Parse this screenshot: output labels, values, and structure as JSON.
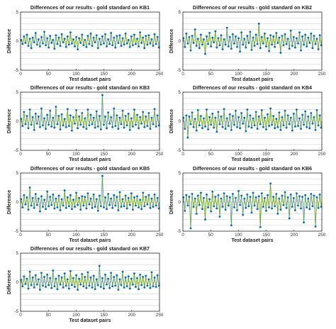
{
  "chart_data": [
    {
      "type": "line",
      "title": "Differences of our results - gold standard on KB1",
      "xlabel": "Test dataset pairs",
      "ylabel": "Difference",
      "xlim": [
        0,
        250
      ],
      "ylim": [
        -5,
        5
      ],
      "xticks": [
        "0",
        "50",
        "100",
        "150",
        "200",
        "250"
      ],
      "yticks": [
        "-5",
        "0",
        "5"
      ],
      "grid": true,
      "series": [
        {
          "values": [
            0.2,
            -0.5,
            0.8,
            -0.3,
            1.1,
            -0.8,
            0.4,
            -1.2,
            0.6,
            -0.2,
            1.4,
            -0.6,
            0.3,
            -0.9,
            0.7,
            -0.4,
            1.6,
            -0.7,
            0.5,
            -1.1,
            0.9,
            -0.3,
            0.2,
            -1.3,
            1.0,
            -0.5,
            0.6,
            -0.8,
            1.2,
            -0.2,
            0.4,
            -1.0,
            0.8,
            -0.6,
            1.5,
            -0.4,
            0.3,
            -0.9,
            0.7,
            -1.4,
            0.5,
            -0.3,
            1.1,
            -0.7,
            0.2,
            -1.0,
            0.9,
            -0.5,
            1.3,
            -0.8,
            0.6,
            -0.2,
            1.0,
            -1.2,
            0.4,
            -0.6,
            0.8,
            -0.4,
            1.2,
            -0.9,
            0.3,
            -0.5,
            1.4,
            -0.7,
            0.6,
            -1.1,
            0.9,
            -0.3,
            1.0,
            -0.8,
            0.5,
            -0.6,
            1.3,
            -0.4,
            0.2,
            -1.0,
            0.8,
            -0.7,
            1.1,
            -0.5,
            0.4,
            -0.9,
            1.5,
            -0.3,
            0.6,
            -1.2,
            0.9,
            -0.6,
            1.0,
            -0.4,
            0.3,
            -0.8,
            1.2,
            -0.5,
            0.7,
            -1.1
          ]
        }
      ]
    },
    {
      "type": "line",
      "title": "Differences of our results - gold standard on KB2",
      "xlabel": "Test dataset pairs",
      "ylabel": "Difference",
      "xlim": [
        0,
        250
      ],
      "ylim": [
        -5,
        5
      ],
      "xticks": [
        "0",
        "50",
        "100",
        "150",
        "200",
        "250"
      ],
      "yticks": [
        "-5",
        "0",
        "5"
      ],
      "grid": true,
      "series": [
        {
          "values": [
            0.5,
            -1.0,
            1.3,
            -0.4,
            0.7,
            -1.6,
            0.9,
            -0.3,
            2.0,
            -0.8,
            0.4,
            -1.2,
            1.1,
            -0.6,
            0.3,
            -2.2,
            0.8,
            -0.5,
            1.4,
            -0.9,
            0.6,
            -0.2,
            1.7,
            -1.1,
            0.5,
            -0.7,
            1.0,
            -1.4,
            0.3,
            -0.6,
            2.3,
            -0.9,
            0.7,
            -1.3,
            1.2,
            -0.4,
            0.8,
            -1.0,
            0.5,
            -1.8,
            1.5,
            -0.6,
            0.4,
            -1.1,
            0.9,
            -0.3,
            1.6,
            -1.5,
            0.6,
            -0.8,
            1.1,
            -0.5,
            3.0,
            -1.2,
            0.7,
            -0.4,
            1.3,
            -0.9,
            0.5,
            -1.7,
            1.0,
            -0.6,
            0.8,
            -1.0,
            1.4,
            -0.3,
            0.6,
            -2.0,
            0.9,
            -0.7,
            1.2,
            -0.5,
            0.4,
            -1.3,
            1.8,
            -0.8,
            0.7,
            -1.1,
            0.5,
            -0.4,
            1.5,
            -1.6,
            0.8,
            -0.6,
            1.1,
            -0.9,
            0.6,
            -0.3,
            1.3,
            -1.2,
            0.9,
            -0.5,
            0.4,
            -1.4,
            1.0,
            -0.7
          ]
        }
      ]
    },
    {
      "type": "line",
      "title": "Differences of our results - gold standard on KB3",
      "xlabel": "Test dataset pairs",
      "ylabel": "Difference",
      "xlim": [
        0,
        250
      ],
      "ylim": [
        -5,
        5
      ],
      "xticks": [
        "0",
        "50",
        "100",
        "150",
        "200",
        "250"
      ],
      "yticks": [
        "-5",
        "0",
        "5"
      ],
      "grid": true,
      "series": [
        {
          "values": [
            0.4,
            -0.8,
            1.6,
            -0.5,
            0.9,
            -1.2,
            2.0,
            -0.6,
            0.7,
            -1.5,
            1.3,
            -0.4,
            0.8,
            -1.0,
            2.2,
            -0.7,
            0.5,
            -1.3,
            1.1,
            -0.6,
            1.8,
            -0.9,
            0.6,
            -1.1,
            2.5,
            -0.5,
            0.9,
            -1.4,
            1.2,
            -0.7,
            0.4,
            -1.0,
            2.1,
            -0.8,
            1.0,
            -1.6,
            0.7,
            -0.4,
            1.9,
            -1.2,
            0.8,
            -0.6,
            1.4,
            -1.0,
            0.5,
            -1.3,
            2.0,
            -0.7,
            1.1,
            -0.5,
            0.6,
            -1.1,
            1.7,
            -0.9,
            0.9,
            -1.4,
            4.5,
            -0.6,
            0.8,
            -1.2,
            1.5,
            -0.4,
            0.7,
            -1.0,
            2.2,
            -0.8,
            1.0,
            -1.3,
            0.6,
            -0.5,
            1.8,
            -1.1,
            0.9,
            -0.7,
            1.3,
            -1.5,
            0.5,
            -0.9,
            2.0,
            -0.6,
            1.1,
            -1.2,
            0.7,
            -0.4,
            1.6,
            -1.0,
            0.8,
            -0.8,
            1.4,
            -1.3,
            0.6,
            -0.5,
            2.1,
            -0.9,
            1.0,
            -0.7
          ]
        }
      ]
    },
    {
      "type": "line",
      "title": "Differences of our results - gold standard on KB4",
      "xlabel": "Test dataset pairs",
      "ylabel": "Difference",
      "xlim": [
        0,
        250
      ],
      "ylim": [
        -5,
        5
      ],
      "xticks": [
        "0",
        "50",
        "100",
        "150",
        "200",
        "250"
      ],
      "yticks": [
        "-5",
        "0",
        "5"
      ],
      "grid": true,
      "series": [
        {
          "values": [
            0.6,
            -1.3,
            1.0,
            -2.8,
            0.8,
            -0.5,
            1.5,
            -1.0,
            0.4,
            -1.6,
            1.9,
            -0.7,
            0.9,
            -1.2,
            0.5,
            -0.9,
            2.0,
            -1.4,
            0.7,
            -0.6,
            1.3,
            -1.1,
            0.6,
            -1.8,
            1.6,
            -0.5,
            0.8,
            -1.0,
            2.1,
            -1.3,
            0.5,
            -0.8,
            1.2,
            -1.5,
            0.9,
            -0.6,
            1.8,
            -1.0,
            0.7,
            -1.2,
            1.4,
            -0.4,
            0.6,
            -1.7,
            2.0,
            -0.9,
            1.0,
            -1.1,
            0.5,
            -0.7,
            1.6,
            -1.3,
            0.8,
            -0.5,
            1.9,
            -1.0,
            0.6,
            -1.4,
            1.2,
            -0.8,
            2.2,
            -0.6,
            0.9,
            -1.2,
            0.4,
            -1.0,
            1.5,
            -1.5,
            0.7,
            -0.7,
            1.8,
            -1.1,
            1.0,
            -0.5,
            0.6,
            -1.6,
            1.3,
            -0.9,
            2.0,
            -0.8,
            0.5,
            -1.3,
            1.1,
            -0.6,
            1.7,
            -1.0,
            0.8,
            -1.2,
            1.4,
            -0.4,
            0.7,
            -1.5,
            1.9,
            -0.7,
            1.0,
            -1.1
          ]
        }
      ]
    },
    {
      "type": "line",
      "title": "Differences of our results - gold standard on KB5",
      "xlabel": "Test dataset pairs",
      "ylabel": "Difference",
      "xlim": [
        0,
        250
      ],
      "ylim": [
        -5,
        5
      ],
      "xticks": [
        "0",
        "50",
        "100",
        "150",
        "200",
        "250"
      ],
      "yticks": [
        "-5",
        "0",
        "5"
      ],
      "grid": true,
      "series": [
        {
          "values": [
            0.5,
            -0.9,
            1.2,
            -0.4,
            0.8,
            -1.3,
            2.5,
            -0.6,
            0.7,
            -1.0,
            1.4,
            -0.5,
            0.6,
            -1.6,
            1.0,
            -0.8,
            0.4,
            -1.2,
            1.8,
            -0.7,
            0.9,
            -0.5,
            1.3,
            -1.1,
            0.6,
            -0.9,
            1.1,
            -1.4,
            0.5,
            -0.6,
            2.0,
            -1.0,
            0.8,
            -0.7,
            1.2,
            -1.2,
            0.4,
            -0.8,
            1.6,
            -0.5,
            0.7,
            -1.3,
            1.0,
            -0.6,
            0.9,
            -1.1,
            1.5,
            -0.4,
            0.6,
            -1.0,
            1.3,
            -0.8,
            0.5,
            -1.5,
            1.1,
            -0.7,
            4.5,
            -0.9,
            0.8,
            -1.2,
            1.4,
            -0.5,
            0.6,
            -1.0,
            1.2,
            -0.6,
            0.9,
            -1.4,
            1.7,
            -0.8,
            0.5,
            -0.7,
            1.1,
            -1.1,
            0.7,
            -0.5,
            1.5,
            -1.3,
            0.8,
            -0.6,
            1.0,
            -0.9,
            0.4,
            -1.2,
            1.6,
            -0.7,
            0.9,
            -0.4,
            1.2,
            -1.0,
            0.6,
            -0.8,
            1.3,
            -0.6,
            0.7,
            -1.1
          ]
        }
      ]
    },
    {
      "type": "line",
      "title": "Differences of our results - gold standard on KB6",
      "xlabel": "Test dataset pairs",
      "ylabel": "Difference",
      "xlim": [
        0,
        250
      ],
      "ylim": [
        -5,
        5
      ],
      "xticks": [
        "0",
        "50",
        "100",
        "150",
        "200",
        "250"
      ],
      "yticks": [
        "-5",
        "0",
        "5"
      ],
      "grid": true,
      "series": [
        {
          "values": [
            0.8,
            -1.5,
            1.2,
            -0.6,
            0.9,
            -4.5,
            1.4,
            -0.8,
            0.6,
            -2.0,
            1.1,
            -0.5,
            1.6,
            -1.2,
            0.7,
            -3.0,
            1.3,
            -0.9,
            0.5,
            -1.6,
            1.8,
            -0.7,
            0.9,
            -1.1,
            1.2,
            -2.5,
            0.6,
            -0.8,
            1.5,
            -1.3,
            1.0,
            -0.6,
            0.8,
            -4.0,
            1.4,
            -0.9,
            0.7,
            -1.4,
            1.9,
            -0.5,
            1.1,
            -2.2,
            0.6,
            -1.0,
            1.3,
            -0.7,
            0.9,
            -1.8,
            1.6,
            -0.6,
            0.8,
            -1.2,
            1.0,
            -4.3,
            1.5,
            -0.8,
            0.7,
            -1.5,
            1.2,
            -0.9,
            3.2,
            -1.1,
            0.9,
            -0.7,
            1.4,
            -2.0,
            0.6,
            -1.3,
            1.1,
            -0.5,
            1.7,
            -1.0,
            0.8,
            -2.8,
            1.3,
            -0.8,
            0.7,
            -1.4,
            1.5,
            -0.6,
            1.0,
            -1.1,
            0.9,
            -3.5,
            1.2,
            -0.9,
            0.6,
            -1.2,
            1.4,
            -0.7,
            1.1,
            -4.2,
            0.8,
            -1.0,
            1.3,
            -0.8
          ]
        }
      ]
    },
    {
      "type": "line",
      "title": "Differences of our results - gold standard on KB7",
      "xlabel": "Test dataset pairs",
      "ylabel": "Difference",
      "xlim": [
        0,
        250
      ],
      "ylim": [
        -5,
        5
      ],
      "xticks": [
        "0",
        "50",
        "100",
        "150",
        "200",
        "250"
      ],
      "yticks": [
        "-5",
        "0",
        "5"
      ],
      "grid": true,
      "series": [
        {
          "values": [
            0.4,
            -0.7,
            1.0,
            -0.3,
            0.6,
            -1.1,
            1.8,
            -0.5,
            0.8,
            -0.9,
            1.2,
            -0.4,
            0.5,
            -1.3,
            1.6,
            -0.6,
            0.9,
            -0.8,
            1.3,
            -0.5,
            0.7,
            -1.0,
            2.0,
            -0.7,
            0.6,
            -1.2,
            1.1,
            -0.4,
            0.8,
            -0.9,
            1.5,
            -0.6,
            0.5,
            -1.1,
            1.9,
            -0.5,
            0.7,
            -0.8,
            1.2,
            -1.3,
            0.6,
            -0.4,
            1.4,
            -0.7,
            0.9,
            -1.0,
            1.7,
            -0.6,
            0.8,
            -0.9,
            1.1,
            -1.2,
            0.5,
            -0.5,
            2.8,
            -0.8,
            0.7,
            -1.1,
            1.3,
            -0.4,
            0.6,
            -1.0,
            1.6,
            -0.7,
            0.9,
            -0.6,
            1.2,
            -1.3,
            0.5,
            -0.5,
            1.8,
            -0.9,
            0.8,
            -0.7,
            1.0,
            -1.1,
            0.6,
            -0.4,
            1.5,
            -0.8,
            0.7,
            -1.2,
            1.3,
            -0.5,
            0.9,
            -0.9,
            1.1,
            -0.6,
            0.5,
            -1.0,
            1.7,
            -0.7,
            0.8,
            -0.8,
            1.2,
            -0.6
          ]
        }
      ]
    }
  ]
}
